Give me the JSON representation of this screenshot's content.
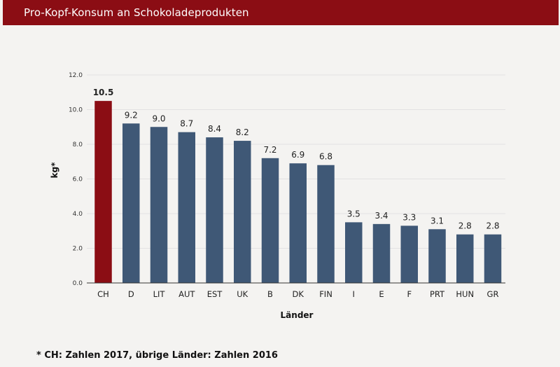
{
  "header": {
    "title": "Pro-Kopf-Konsum an Schokoladeprodukten"
  },
  "footnote": "* CH: Zahlen 2017, übrige Länder: Zahlen 2016",
  "colors": {
    "header": "#8b0d14",
    "highlight": "#8b0d14",
    "bar": "#3f5876",
    "grid": "#e2e2e2"
  },
  "chart_data": {
    "type": "bar",
    "title": "Pro-Kopf-Konsum an Schokoladeprodukten",
    "xlabel": "Länder",
    "ylabel": "kg*",
    "ylim": [
      0,
      12
    ],
    "yticks": [
      "0.0",
      "2.0",
      "4.0",
      "6.0",
      "8.0",
      "10.0",
      "12.0"
    ],
    "grid": true,
    "categories": [
      "CH",
      "D",
      "LIT",
      "AUT",
      "EST",
      "UK",
      "B",
      "DK",
      "FIN",
      "I",
      "E",
      "F",
      "PRT",
      "HUN",
      "GR"
    ],
    "values": [
      10.5,
      9.2,
      9.0,
      8.7,
      8.4,
      8.2,
      7.2,
      6.9,
      6.8,
      3.5,
      3.4,
      3.3,
      3.1,
      2.8,
      2.8
    ],
    "value_labels": [
      "10.5",
      "9.2",
      "9.0",
      "8.7",
      "8.4",
      "8.2",
      "7.2",
      "6.9",
      "6.8",
      "3.5",
      "3.4",
      "3.3",
      "3.1",
      "2.8",
      "2.8"
    ],
    "highlight_category": "CH"
  }
}
